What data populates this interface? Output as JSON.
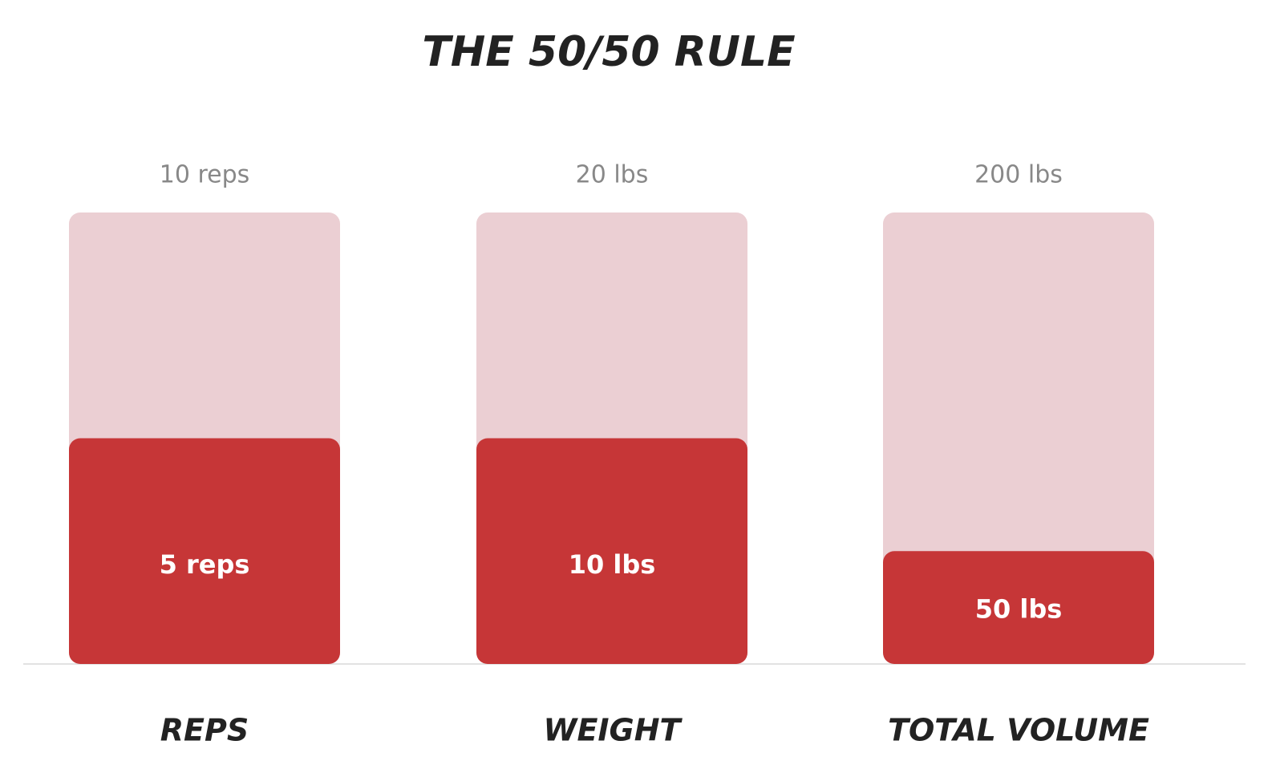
{
  "chart_data": {
    "type": "bar",
    "title": "THE 50/50 RULE",
    "categories": [
      "REPS",
      "WEIGHT",
      "TOTAL VOLUME"
    ],
    "series": [
      {
        "color": "#ebcfd3",
        "values": [
          10,
          20,
          200
        ],
        "value_labels": [
          "10 reps",
          "20 lbs",
          "200 lbs"
        ]
      },
      {
        "color": "#c63637",
        "values": [
          5,
          10,
          50
        ],
        "value_labels": [
          "5 reps",
          "10 lbs",
          "50 lbs"
        ]
      }
    ]
  }
}
